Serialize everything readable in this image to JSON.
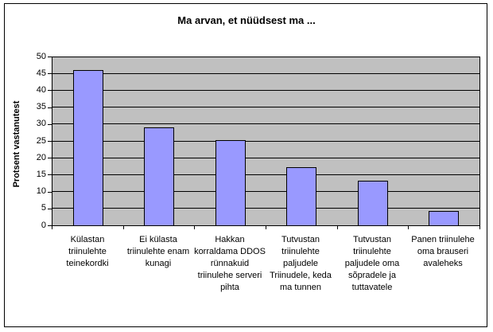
{
  "chart_data": {
    "type": "bar",
    "title": "Ma arvan, et nüüdsest ma ...",
    "categories": [
      "Külastan triinulehte teinekordki",
      "Ei külasta triinulehte enam kunagi",
      "Hakkan korraldama DDOS rünnakuid triinulehe serveri pihta",
      "Tutvustan triinulehte paljudele Triinudele, keda ma tunnen",
      "Tutvustan triinulehte paljudele oma sõpradele ja tuttavatele",
      "Panen triinulehe oma brauseri avaleheks"
    ],
    "values": [
      46,
      29,
      25,
      17,
      13,
      4
    ],
    "xlabel": "",
    "ylabel": "Protsent vastanutest",
    "ylim": [
      0,
      50
    ],
    "ytick_interval": 5,
    "yticks": [
      0,
      5,
      10,
      15,
      20,
      25,
      30,
      35,
      40,
      45,
      50
    ],
    "grid": true,
    "legend": "none",
    "colors": {
      "bar_fill": "#9999FF",
      "bar_border": "#000000",
      "plot_background": "#C0C0C0",
      "chart_background": "#FFFFFF",
      "gridline": "#000000",
      "text": "#000000"
    }
  }
}
